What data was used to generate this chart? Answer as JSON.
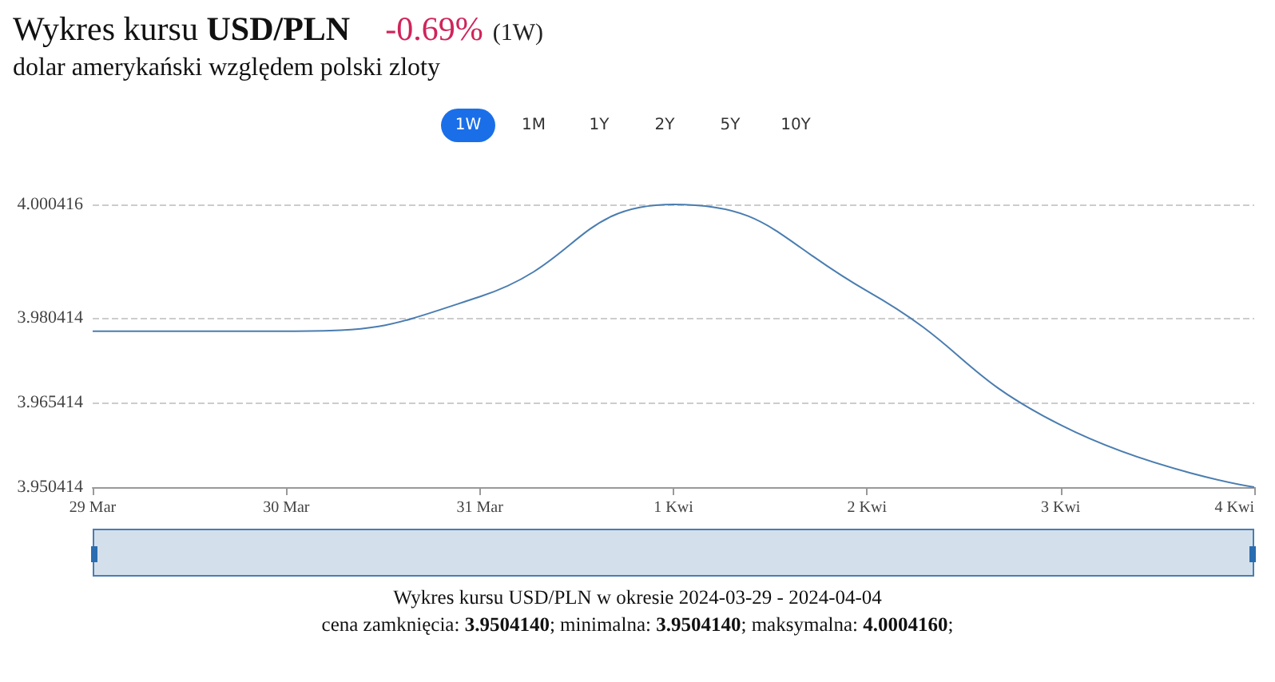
{
  "chart_data": {
    "type": "line",
    "title": "Wykres kursu USD/PLN",
    "subtitle": "dolar amerykański względem polski zloty",
    "annotations": [
      "-0.69%",
      "(1W)",
      "1W",
      "1M",
      "1Y",
      "2Y",
      "5Y",
      "10Y",
      "Wykres kursu USD/PLN w okresie 2024-03-29 - 2024-04-04",
      "cena zamknięcia: 3.9504140; minimalna: 3.9504140; maksymalna: 4.0004160;"
    ],
    "x": [
      "2024-03-29",
      "2024-03-30",
      "2024-03-31",
      "2024-04-01",
      "2024-04-02",
      "2024-04-03",
      "2024-04-04"
    ],
    "series": [
      {
        "color": "#4a7db0",
        "values": [
          3.978,
          3.978,
          3.9841,
          4.000416,
          3.9851,
          3.9614,
          3.950414
        ]
      }
    ],
    "xlim": [
      "2024-03-29",
      "2024-04-04"
    ],
    "xticks": [
      {
        "value": "2024-03-29",
        "label": "29 Mar"
      },
      {
        "value": "2024-03-30",
        "label": "30 Mar"
      },
      {
        "value": "2024-03-31",
        "label": "31 Mar"
      },
      {
        "value": "2024-04-01",
        "label": "1 Kwi"
      },
      {
        "value": "2024-04-02",
        "label": "2 Kwi"
      },
      {
        "value": "2024-04-03",
        "label": "3 Kwi"
      },
      {
        "value": "2024-04-04",
        "label": "4 Kwi"
      }
    ],
    "ylim": [
      3.950414,
      4.000416
    ],
    "yticks": [
      3.950414,
      3.965414,
      3.980414,
      4.000416
    ],
    "grid": "y",
    "marker": "none",
    "line_style": "solid"
  }
}
